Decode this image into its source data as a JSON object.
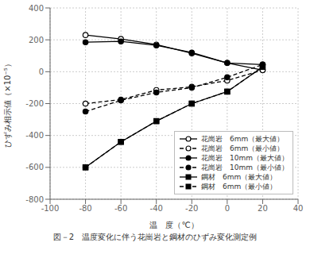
{
  "chart_data": {
    "type": "line",
    "title": "図－2　温度変化に伴う花崗岩と鋼材のひずみ変化測定例",
    "xlabel": "温　度（℃）",
    "ylabel": "ひずみ相示値（×10⁻⁵）",
    "xlim": [
      -100,
      40
    ],
    "ylim": [
      -800,
      400
    ],
    "xticks": [
      -100,
      -80,
      -60,
      -40,
      -20,
      0,
      20,
      40
    ],
    "yticks": [
      -800,
      -600,
      -400,
      -200,
      0,
      200,
      400
    ],
    "grid": true,
    "legend": "lower right",
    "x": [
      -80,
      -60,
      -40,
      -20,
      0,
      20
    ],
    "series": [
      {
        "name": "花崗岩　6mm（最大値）",
        "color": "#000000",
        "marker": "open_circle",
        "line_style": "solid",
        "values": [
          230,
          205,
          170,
          115,
          55,
          10
        ]
      },
      {
        "name": "花崗岩　6mm（最小値）",
        "color": "#000000",
        "marker": "open_circle",
        "line_style": "dashed",
        "values": [
          -200,
          -175,
          -115,
          -95,
          -55,
          10
        ]
      },
      {
        "name": "花崗岩　10mm（最大値）",
        "color": "#000000",
        "marker": "circle",
        "line_style": "solid",
        "values": [
          185,
          190,
          165,
          120,
          55,
          45
        ]
      },
      {
        "name": "花崗岩　10mm（最小値）",
        "color": "#000000",
        "marker": "circle",
        "line_style": "dashed",
        "values": [
          -250,
          -180,
          -130,
          -100,
          -35,
          45
        ]
      },
      {
        "name": "鋼材　6mm（最大値）",
        "color": "#000000",
        "marker": "square",
        "line_style": "solid",
        "values": [
          -600,
          -440,
          -310,
          -200,
          -125,
          30
        ]
      },
      {
        "name": "鋼材　6mm（最小値）",
        "color": "#000000",
        "marker": "square",
        "line_style": "dashed",
        "values": [
          -600,
          -440,
          -310,
          -200,
          -125,
          30
        ]
      }
    ]
  }
}
